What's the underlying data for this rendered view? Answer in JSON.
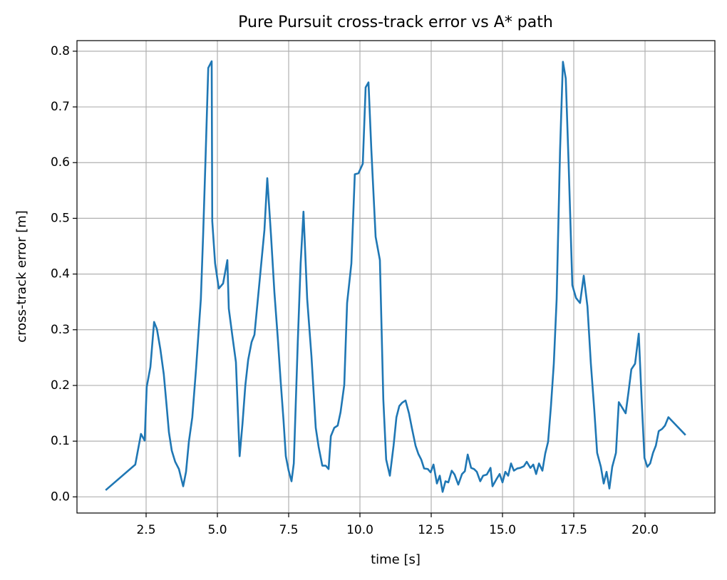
{
  "chart_data": {
    "type": "line",
    "title": "Pure Pursuit cross-track error vs A* path",
    "x_label": "time [s]",
    "y_label": "cross-track error [m]",
    "xlim": [
      0.075,
      22.45
    ],
    "ylim": [
      -0.029,
      0.819
    ],
    "xticks": [
      2.5,
      {
        "value": 5,
        "label": "5.0"
      },
      7.5,
      {
        "value": 10,
        "label": "10.0"
      },
      12.5,
      {
        "value": 15,
        "label": "15.0"
      },
      17.5,
      {
        "value": 20,
        "label": "20.0"
      }
    ],
    "yticks": [
      {
        "value": 0,
        "label": "0.0"
      },
      0.1,
      0.2,
      0.3,
      0.4,
      0.5,
      0.6,
      0.7,
      0.8
    ],
    "grid": true,
    "x": [
      1.08,
      2.12,
      2.32,
      2.45,
      2.52,
      2.65,
      2.78,
      2.88,
      3.0,
      3.12,
      3.22,
      3.3,
      3.4,
      3.52,
      3.65,
      3.8,
      3.9,
      4.0,
      4.12,
      4.25,
      4.42,
      4.5,
      4.58,
      4.68,
      4.8,
      4.82,
      4.92,
      5.05,
      5.2,
      5.35,
      5.4,
      5.52,
      5.65,
      5.78,
      5.88,
      5.98,
      6.08,
      6.2,
      6.3,
      6.42,
      6.55,
      6.65,
      6.75,
      6.88,
      7.0,
      7.12,
      7.22,
      7.32,
      7.4,
      7.5,
      7.6,
      7.68,
      7.82,
      7.92,
      8.02,
      8.15,
      8.3,
      8.45,
      8.55,
      8.68,
      8.8,
      8.9,
      8.98,
      9.1,
      9.22,
      9.32,
      9.45,
      9.55,
      9.7,
      9.82,
      9.95,
      10.1,
      10.2,
      10.3,
      10.4,
      10.55,
      10.7,
      10.82,
      10.92,
      11.05,
      11.18,
      11.28,
      11.38,
      11.48,
      11.6,
      11.72,
      11.82,
      11.95,
      12.05,
      12.15,
      12.25,
      12.38,
      12.48,
      12.58,
      12.7,
      12.8,
      12.9,
      13.0,
      13.1,
      13.22,
      13.32,
      13.45,
      13.58,
      13.68,
      13.78,
      13.9,
      14.0,
      14.1,
      14.22,
      14.32,
      14.45,
      14.58,
      14.65,
      14.78,
      14.9,
      15.0,
      15.1,
      15.2,
      15.3,
      15.4,
      15.52,
      15.62,
      15.75,
      15.85,
      15.98,
      16.08,
      16.18,
      16.28,
      16.4,
      16.5,
      16.6,
      16.7,
      16.8,
      16.9,
      17.02,
      17.12,
      17.22,
      17.32,
      17.45,
      17.58,
      17.72,
      17.85,
      17.98,
      18.1,
      18.22,
      18.32,
      18.45,
      18.55,
      18.65,
      18.75,
      18.85,
      18.98,
      19.08,
      19.2,
      19.32,
      19.42,
      19.52,
      19.65,
      19.78,
      19.88,
      19.98,
      20.08,
      20.18,
      20.28,
      20.38,
      20.48,
      20.6,
      20.7,
      20.82,
      21.42
    ],
    "series": [
      {
        "color": "#1f77b4",
        "values": [
          0.012,
          0.058,
          0.113,
          0.101,
          0.197,
          0.233,
          0.314,
          0.301,
          0.265,
          0.22,
          0.163,
          0.116,
          0.083,
          0.063,
          0.05,
          0.019,
          0.045,
          0.099,
          0.143,
          0.229,
          0.355,
          0.47,
          0.6,
          0.77,
          0.782,
          0.495,
          0.419,
          0.374,
          0.383,
          0.425,
          0.338,
          0.291,
          0.242,
          0.073,
          0.131,
          0.2,
          0.246,
          0.278,
          0.291,
          0.355,
          0.425,
          0.479,
          0.572,
          0.47,
          0.367,
          0.284,
          0.207,
          0.137,
          0.073,
          0.047,
          0.028,
          0.06,
          0.278,
          0.419,
          0.512,
          0.355,
          0.252,
          0.124,
          0.09,
          0.056,
          0.056,
          0.05,
          0.109,
          0.124,
          0.128,
          0.152,
          0.201,
          0.348,
          0.419,
          0.579,
          0.581,
          0.598,
          0.735,
          0.744,
          0.623,
          0.467,
          0.425,
          0.175,
          0.067,
          0.038,
          0.092,
          0.143,
          0.163,
          0.169,
          0.173,
          0.15,
          0.124,
          0.092,
          0.077,
          0.067,
          0.051,
          0.05,
          0.044,
          0.058,
          0.024,
          0.038,
          0.009,
          0.028,
          0.026,
          0.047,
          0.04,
          0.022,
          0.041,
          0.046,
          0.076,
          0.052,
          0.05,
          0.045,
          0.028,
          0.038,
          0.04,
          0.052,
          0.019,
          0.031,
          0.041,
          0.026,
          0.045,
          0.038,
          0.06,
          0.047,
          0.051,
          0.052,
          0.055,
          0.063,
          0.052,
          0.058,
          0.041,
          0.06,
          0.047,
          0.078,
          0.099,
          0.163,
          0.239,
          0.355,
          0.623,
          0.781,
          0.751,
          0.598,
          0.38,
          0.357,
          0.348,
          0.397,
          0.342,
          0.239,
          0.156,
          0.079,
          0.054,
          0.024,
          0.045,
          0.015,
          0.054,
          0.079,
          0.17,
          0.16,
          0.15,
          0.188,
          0.229,
          0.239,
          0.293,
          0.175,
          0.07,
          0.054,
          0.06,
          0.079,
          0.092,
          0.118,
          0.122,
          0.128,
          0.143,
          0.111
        ]
      }
    ]
  }
}
